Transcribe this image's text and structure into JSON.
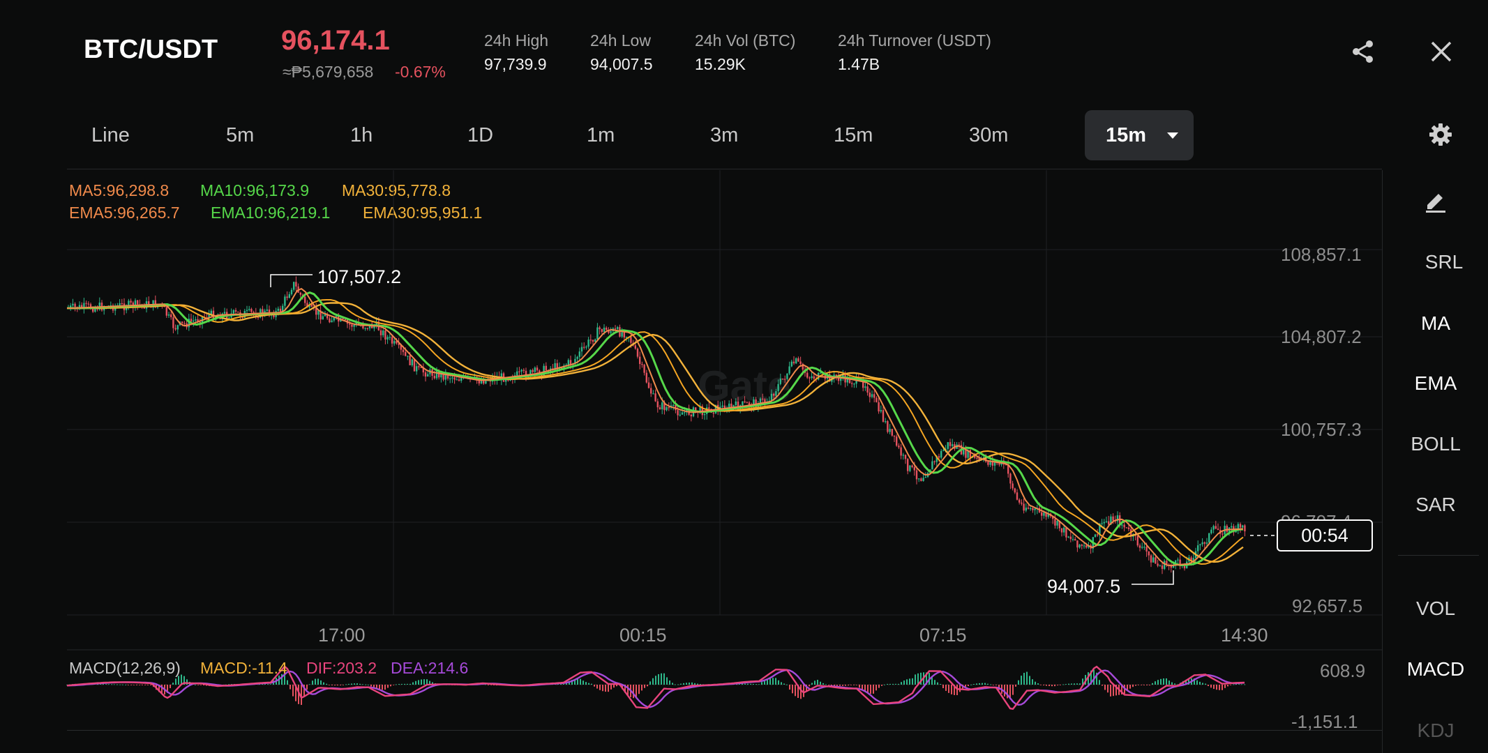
{
  "header": {
    "pair": "BTC/USDT",
    "last_price": "96,174.1",
    "fiat_price": "≈₱5,679,658",
    "change_pct": "-0.67%",
    "stats": [
      {
        "label": "24h High",
        "value": "97,739.9"
      },
      {
        "label": "24h Low",
        "value": "94,007.5"
      },
      {
        "label": "24h Vol (BTC)",
        "value": "15.29K"
      },
      {
        "label": "24h Turnover (USDT)",
        "value": "1.47B"
      }
    ],
    "share_icon": "share-icon",
    "close_icon": "close-icon"
  },
  "tabs": {
    "items": [
      "Line",
      "5m",
      "1h",
      "1D",
      "1m",
      "3m",
      "15m",
      "30m"
    ],
    "selected": "15m",
    "settings_icon": "gear-icon"
  },
  "indicators": {
    "ma5": "MA5:96,298.8",
    "ma10": "MA10:96,173.9",
    "ma30": "MA30:95,778.8",
    "ema5": "EMA5:96,265.7",
    "ema10": "EMA10:96,219.1",
    "ema30": "EMA30:95,951.1"
  },
  "colors": {
    "ma5": "#f08a4b",
    "ma10": "#56d84a",
    "ma30": "#f2b23a",
    "dif": "#e8447d",
    "dea": "#a64ad9",
    "up": "#2eb88a",
    "down": "#e5525f"
  },
  "sidebar": {
    "draw_icon": "pencil-icon",
    "items": [
      "SRL",
      "MA",
      "EMA",
      "BOLL",
      "SAR",
      "VOL",
      "MACD",
      "KDJ"
    ]
  },
  "chart": {
    "y_ticks": [
      "108,857.1",
      "104,807.2",
      "100,757.3",
      "96,707.4",
      "92,657.5"
    ],
    "x_ticks": [
      "17:00",
      "00:15",
      "07:15",
      "14:30"
    ],
    "high_label": "107,507.2",
    "low_label": "94,007.5",
    "countdown": "00:54",
    "watermark": "Gate"
  },
  "macd": {
    "params": "MACD(12,26,9)",
    "macd": "MACD:-11.4",
    "dif": "DIF:203.2",
    "dea": "DEA:214.6",
    "y_ticks": [
      "608.9",
      "-1,151.1"
    ]
  }
}
